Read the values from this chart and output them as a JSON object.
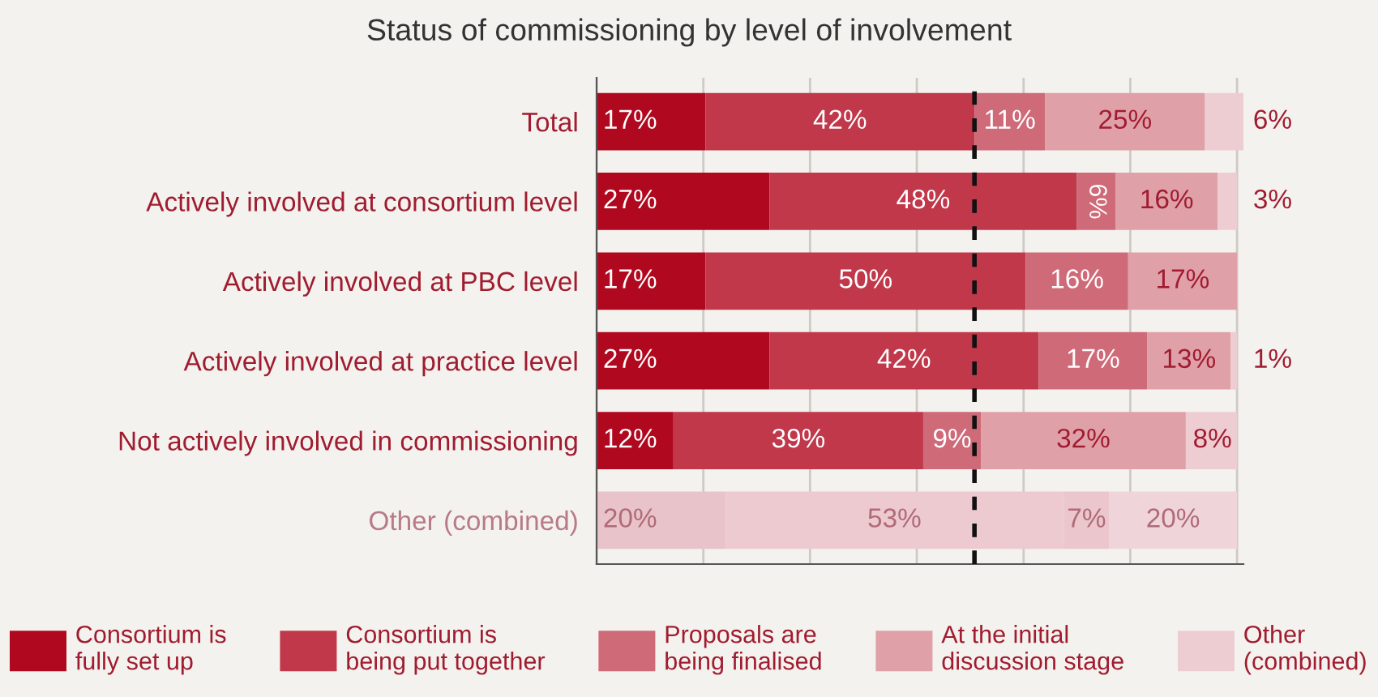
{
  "chart_data": {
    "type": "bar",
    "orientation": "horizontal",
    "stacked": true,
    "title": "Status of commissioning by level of involvement",
    "categories": [
      "Total",
      "Actively involved at consortium level",
      "Actively involved at PBC level",
      "Actively involved at practice level",
      "Not actively involved in commissioning",
      "Other (combined)"
    ],
    "series": [
      {
        "name": "Consortium is\nfully set up",
        "color": "#b0091f",
        "colors": [
          "#b0091f",
          "#b0091f",
          "#b0091f",
          "#b0091f",
          "#b0091f",
          "#e8c3c9"
        ],
        "values": [
          17,
          27,
          17,
          27,
          12,
          20
        ],
        "value_labels": [
          "17%",
          "27%",
          "17%",
          "27%",
          "12%",
          "20%"
        ]
      },
      {
        "name": "Consortium is\nbeing put together",
        "color": "#c0384a",
        "colors": [
          "#c0384a",
          "#c0384a",
          "#c0384a",
          "#c0384a",
          "#c0384a",
          "#eccad0"
        ],
        "values": [
          42,
          48,
          50,
          42,
          39,
          53
        ],
        "value_labels": [
          "42%",
          "48%",
          "50%",
          "42%",
          "39%",
          "53%"
        ]
      },
      {
        "name": "Proposals are\nbeing finalised",
        "color": "#cf6a78",
        "colors": [
          "#cf6a78",
          "#cf6a78",
          "#cf6a78",
          "#cf6a78",
          "#cf6a78",
          "#ebc6cc"
        ],
        "values": [
          11,
          6,
          16,
          17,
          9,
          7
        ],
        "value_labels": [
          "11%",
          "6%",
          "16%",
          "17%",
          "9%",
          "7%"
        ]
      },
      {
        "name": "At the initial\ndiscussion stage",
        "color": "#e0a0a8",
        "colors": [
          "#e0a0a8",
          "#e0a0a8",
          "#e0a0a8",
          "#e0a0a8",
          "#e0a0a8",
          "#efd5d9"
        ],
        "values": [
          25,
          16,
          17,
          13,
          32,
          20
        ],
        "value_labels": [
          "25%",
          "16%",
          "17%",
          "13%",
          "32%",
          "20%"
        ]
      },
      {
        "name": "Other\n(combined)",
        "color": "#eecdd2",
        "colors": [
          "#eecdd2",
          "#eecdd2",
          "#eecdd2",
          "#eecdd2",
          "#eecdd2",
          "#eecdd2"
        ],
        "values": [
          6,
          3,
          0,
          1,
          8,
          0
        ],
        "value_labels": [
          "6%",
          "3%",
          null,
          "1%",
          "8%",
          null
        ]
      }
    ],
    "xlim": [
      0,
      101
    ],
    "xticks": [
      {
        "value": 0,
        "label": null
      },
      {
        "value": 16.67,
        "label": null
      },
      {
        "value": 33.33,
        "label": null
      },
      {
        "value": 50,
        "label": null
      },
      {
        "value": 66.67,
        "label": null
      },
      {
        "value": 83.33,
        "label": null
      },
      {
        "value": 100,
        "label": null
      }
    ],
    "tick_labels": "y",
    "grid": "x",
    "legend": "bottom",
    "ref_lines": [
      {
        "axis": "x",
        "value": 59,
        "line_style": "dashed",
        "color": "#111111"
      }
    ]
  }
}
